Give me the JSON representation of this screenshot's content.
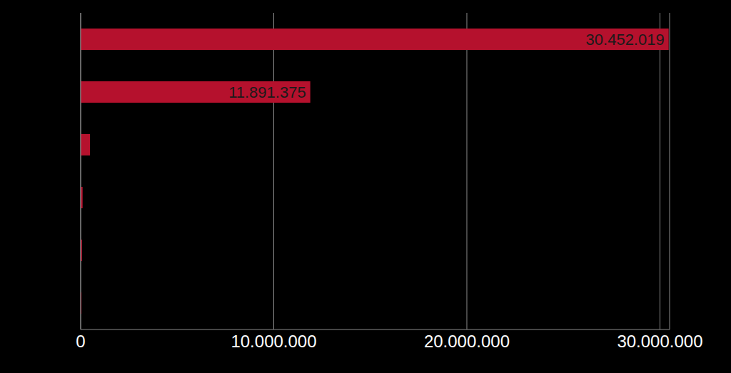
{
  "chart_data": {
    "type": "bar",
    "orientation": "horizontal",
    "categories": [
      null,
      null,
      null,
      null,
      null,
      null
    ],
    "values": [
      30452019,
      11891375,
      480000,
      100000,
      70000,
      40000
    ],
    "value_labels": [
      "30.452.019",
      "11.891.375",
      null,
      null,
      null,
      null
    ],
    "data_labels": true,
    "color": "#b5112d",
    "xlim": [
      0,
      30500000
    ],
    "xticks": [
      0,
      {
        "value": 10000000,
        "label": "10.000.000"
      },
      {
        "value": 20000000,
        "label": "20.000.000"
      },
      {
        "value": 30000000,
        "label": "30.000.000"
      }
    ],
    "grid": true,
    "tick_labels": "x"
  }
}
